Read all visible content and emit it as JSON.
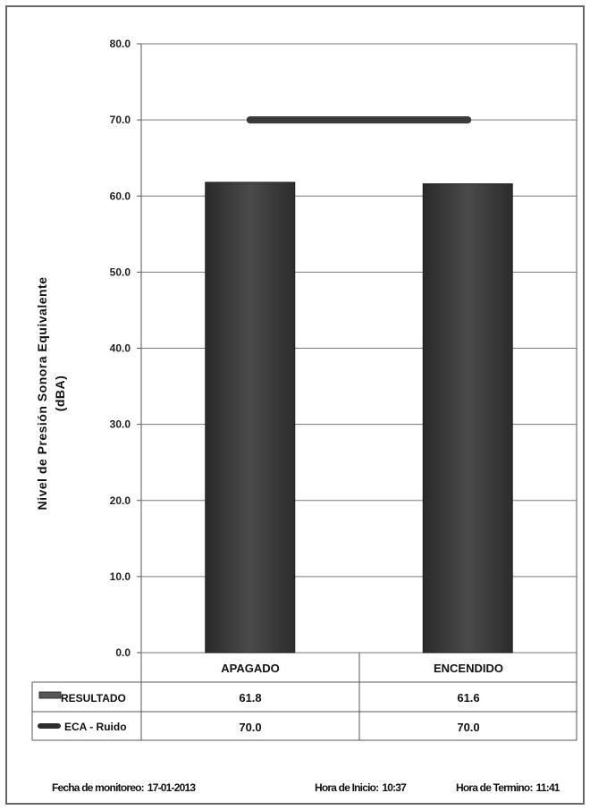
{
  "chart_data": {
    "type": "bar",
    "categories": [
      "APAGADO",
      "ENCENDIDO"
    ],
    "series": [
      {
        "name": "RESULTADO",
        "values": [
          61.8,
          61.6
        ],
        "color": "#3a3a3a"
      },
      {
        "name": "ECA - Ruido",
        "values": [
          70.0,
          70.0
        ],
        "color": "#3a3a3a",
        "style": "line"
      }
    ],
    "ylabel": "Nivel de Presión Sonora Equivalente (dBA)",
    "ylabel_lines": [
      "Nivel de Presión Sonora Equivalente",
      "(dBA)"
    ],
    "ylim": [
      0,
      80
    ],
    "yticks": [
      "0.0",
      "10.0",
      "20.0",
      "30.0",
      "40.0",
      "50.0",
      "60.0",
      "70.0",
      "80.0"
    ],
    "table_values": [
      [
        "61.8",
        "61.6"
      ],
      [
        "70.0",
        "70.0"
      ]
    ],
    "grid": true,
    "legend": "data-table"
  },
  "footer": {
    "fecha_label": "Fecha de monitoreo:",
    "fecha_value": "17-01-2013",
    "inicio_label": "Hora de Inicio:",
    "inicio_value": "10:37",
    "termino_label": "Hora de Termino:",
    "termino_value": "11:41"
  }
}
